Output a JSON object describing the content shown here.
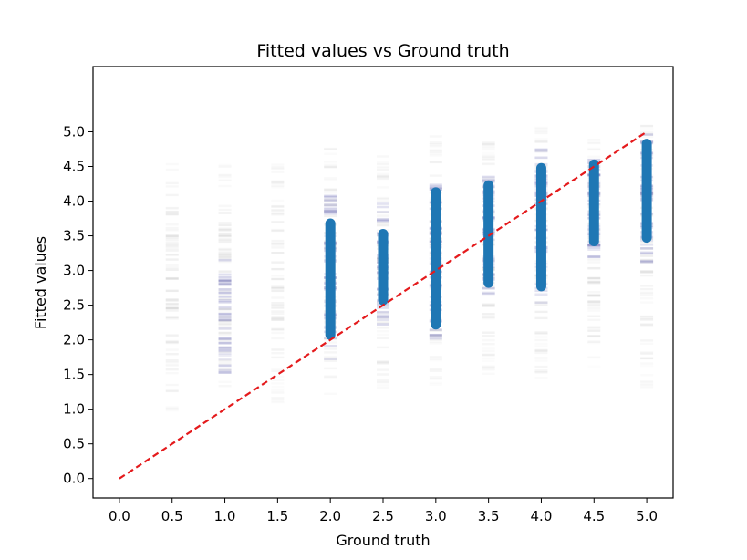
{
  "chart_data": {
    "type": "scatter",
    "title": "Fitted values vs Ground truth",
    "xlabel": "Ground truth",
    "ylabel": "Fitted values",
    "xlim": [
      -0.25,
      5.25
    ],
    "ylim": [
      -0.28,
      5.94
    ],
    "xticks": [
      "0.0",
      "0.5",
      "1.0",
      "1.5",
      "2.0",
      "2.5",
      "3.0",
      "3.5",
      "4.0",
      "4.5",
      "5.0"
    ],
    "yticks": [
      "0.0",
      "0.5",
      "1.0",
      "1.5",
      "2.0",
      "2.5",
      "3.0",
      "3.5",
      "4.0",
      "4.5",
      "5.0"
    ],
    "grid": false,
    "reference_line": {
      "from": [
        0,
        0
      ],
      "to": [
        5,
        5
      ],
      "style": "dashed",
      "color": "#e41a1c"
    },
    "colors": {
      "dense": "#1f77b4",
      "medium": "#6a6ab4",
      "faint": "#888888"
    },
    "groups": [
      {
        "x": 0.5,
        "faint_range": [
          0.95,
          4.55
        ],
        "medium_range": null,
        "dense_range": null
      },
      {
        "x": 1.0,
        "faint_range": [
          1.25,
          4.6
        ],
        "medium_range": [
          1.45,
          3.2
        ],
        "dense_range": null
      },
      {
        "x": 1.5,
        "faint_range": [
          1.05,
          4.55
        ],
        "medium_range": null,
        "dense_range": null
      },
      {
        "x": 2.0,
        "faint_range": [
          1.2,
          4.9
        ],
        "medium_range": [
          1.7,
          4.1
        ],
        "dense_range": [
          2.0,
          3.75
        ]
      },
      {
        "x": 2.5,
        "faint_range": [
          1.3,
          4.75
        ],
        "medium_range": [
          2.2,
          4.0
        ],
        "dense_range": [
          2.5,
          3.6
        ]
      },
      {
        "x": 3.0,
        "faint_range": [
          1.3,
          4.95
        ],
        "medium_range": [
          2.0,
          4.4
        ],
        "dense_range": [
          2.15,
          4.2
        ]
      },
      {
        "x": 3.5,
        "faint_range": [
          1.5,
          4.95
        ],
        "medium_range": [
          2.6,
          4.45
        ],
        "dense_range": [
          2.75,
          4.3
        ]
      },
      {
        "x": 4.0,
        "faint_range": [
          1.4,
          5.1
        ],
        "medium_range": [
          2.5,
          4.75
        ],
        "dense_range": [
          2.7,
          4.55
        ]
      },
      {
        "x": 4.5,
        "faint_range": [
          1.6,
          4.9
        ],
        "medium_range": [
          3.1,
          4.65
        ],
        "dense_range": [
          3.35,
          4.6
        ]
      },
      {
        "x": 5.0,
        "faint_range": [
          1.2,
          5.2
        ],
        "medium_range": [
          3.1,
          5.0
        ],
        "dense_range": [
          3.4,
          4.9
        ]
      }
    ]
  }
}
